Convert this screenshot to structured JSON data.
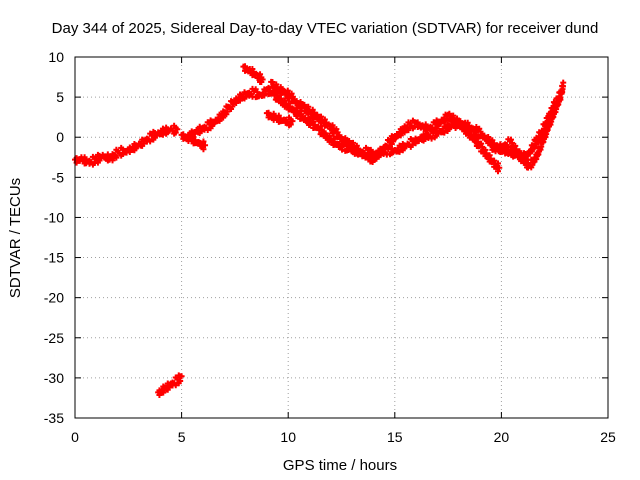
{
  "chart_data": {
    "type": "scatter",
    "title": "Day 344 of 2025, Sidereal Day-to-day VTEC variation (SDTVAR) for receiver dund",
    "xlabel": "GPS time / hours",
    "ylabel": "SDTVAR / TECUs",
    "xlim": [
      0,
      25
    ],
    "ylim": [
      -35,
      10
    ],
    "xticks": [
      0,
      5,
      10,
      15,
      20,
      25
    ],
    "yticks": [
      -35,
      -30,
      -25,
      -20,
      -15,
      -10,
      -5,
      0,
      5,
      10
    ],
    "xtick_labels": [
      "0",
      "5",
      "10",
      "15",
      "20",
      "25"
    ],
    "ytick_labels": [
      "-35",
      "-30",
      "-25",
      "-20",
      "-15",
      "-10",
      "-5",
      "0",
      "5",
      "10"
    ],
    "grid": true,
    "marker_color": "#ff0000",
    "series": [
      {
        "name": "main-track",
        "x": [
          0.0,
          0.3,
          0.6,
          1.0,
          1.3,
          1.7,
          2.0,
          2.5,
          3.0,
          3.3,
          3.6,
          3.9,
          4.2,
          4.5,
          4.8
        ],
        "y": [
          -2.8,
          -2.5,
          -3.0,
          -2.7,
          -2.2,
          -2.5,
          -1.8,
          -1.5,
          -0.8,
          -0.3,
          0.2,
          0.6,
          0.9,
          1.1,
          1.0
        ]
      },
      {
        "name": "segment-2",
        "x": [
          5.4,
          5.7,
          6.0,
          6.3,
          6.6,
          6.9,
          7.2,
          7.5,
          7.8,
          8.1,
          8.4,
          8.7,
          9.0,
          9.3,
          9.6,
          9.9,
          10.2,
          10.5,
          10.8,
          11.1,
          11.4,
          11.7,
          12.0,
          12.3,
          12.6,
          12.9,
          13.2,
          13.5,
          13.8,
          14.1,
          14.4,
          14.7,
          15.0,
          15.3,
          15.6,
          15.9,
          16.2,
          16.5,
          16.8,
          17.1,
          17.4,
          17.7,
          18.0,
          18.3,
          18.6,
          18.9,
          19.2,
          19.5,
          19.8,
          20.1,
          20.4,
          20.7,
          21.0,
          21.3,
          21.6,
          21.9,
          22.2,
          22.5,
          22.8
        ],
        "y": [
          0.5,
          0.9,
          1.2,
          1.6,
          2.2,
          2.8,
          3.8,
          4.6,
          5.2,
          5.5,
          5.7,
          5.3,
          6.0,
          5.6,
          4.8,
          4.2,
          3.6,
          3.0,
          2.4,
          1.8,
          1.3,
          0.5,
          -0.2,
          -0.8,
          -1.0,
          -1.4,
          -1.6,
          -1.8,
          -1.6,
          -2.0,
          -1.8,
          -1.5,
          -1.6,
          -1.2,
          -0.8,
          -0.4,
          0.0,
          0.2,
          0.5,
          0.8,
          1.2,
          1.6,
          1.9,
          1.8,
          1.2,
          0.8,
          0.2,
          -0.5,
          -1.0,
          -1.5,
          -1.8,
          -2.0,
          -2.5,
          -1.8,
          -0.5,
          0.8,
          2.6,
          4.2,
          5.6
        ]
      },
      {
        "name": "segment-3",
        "x": [
          5.0,
          5.4,
          5.8,
          6.1
        ],
        "y": [
          0.3,
          0.0,
          -0.6,
          -1.0
        ]
      },
      {
        "name": "segment-4",
        "x": [
          7.9,
          8.2,
          8.5,
          8.8
        ],
        "y": [
          8.8,
          8.5,
          7.9,
          7.2
        ]
      },
      {
        "name": "segment-5",
        "x": [
          9.2,
          9.5,
          9.8,
          10.1,
          10.4,
          10.7,
          11.0,
          11.3,
          11.6,
          11.9,
          12.2,
          12.5,
          12.8,
          13.1,
          13.4,
          13.7,
          14.0
        ],
        "y": [
          6.9,
          6.2,
          5.8,
          5.2,
          4.5,
          3.9,
          3.3,
          2.8,
          2.2,
          1.6,
          0.8,
          0.0,
          -0.6,
          -1.2,
          -1.8,
          -2.3,
          -2.7
        ]
      },
      {
        "name": "segment-6",
        "x": [
          9.0,
          9.4,
          9.8,
          10.2
        ],
        "y": [
          3.0,
          2.6,
          2.2,
          2.0
        ]
      },
      {
        "name": "segment-7",
        "x": [
          13.9,
          14.2,
          14.5,
          14.8,
          15.1,
          15.4,
          15.7,
          16.0,
          16.3,
          16.6,
          16.9,
          17.2,
          17.5,
          17.8,
          18.1,
          18.4,
          18.7,
          19.0,
          19.3,
          19.6,
          19.9
        ],
        "y": [
          -2.8,
          -2.0,
          -1.2,
          -0.4,
          0.4,
          1.0,
          1.6,
          1.8,
          1.5,
          1.2,
          1.6,
          2.2,
          2.8,
          2.2,
          1.6,
          0.8,
          0.0,
          -1.0,
          -2.0,
          -3.0,
          -3.8
        ]
      },
      {
        "name": "segment-8",
        "x": [
          19.5,
          19.8,
          20.1,
          20.4,
          20.7,
          21.0,
          21.3,
          21.6,
          21.9,
          22.2,
          22.5,
          22.8,
          22.9
        ],
        "y": [
          -1.0,
          -1.5,
          -1.0,
          -0.5,
          -1.5,
          -2.5,
          -3.5,
          -2.5,
          -0.5,
          1.5,
          3.5,
          5.5,
          6.8
        ]
      },
      {
        "name": "segment-9",
        "x": [
          3.9,
          4.2,
          4.5,
          4.8,
          5.0
        ],
        "y": [
          -31.8,
          -31.2,
          -30.7,
          -30.2,
          -29.8
        ]
      }
    ]
  }
}
